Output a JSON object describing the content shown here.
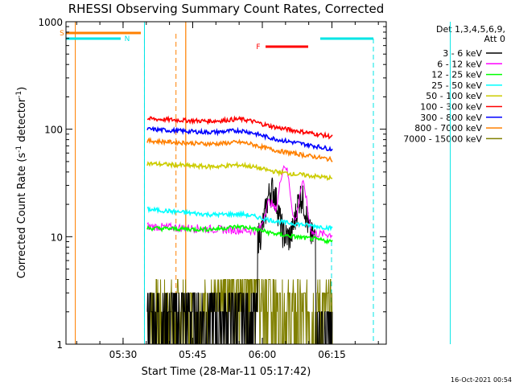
{
  "chart_data": {
    "type": "line",
    "title": "RHESSI Observing Summary Count Rates, Corrected",
    "xlabel": "Start Time (28-Mar-11 05:17:42)",
    "ylabel_base": "Corrected Count Rate (s",
    "ylabel_exp1": "-1",
    "ylabel_mid": " detector",
    "ylabel_exp2": "-1",
    "ylabel_end": ")",
    "yscale": "log",
    "ylim": [
      1,
      1000
    ],
    "xlim_minutes": [
      17.7,
      86.7
    ],
    "x_ticks": [
      {
        "t": 30,
        "label": "05:30"
      },
      {
        "t": 45,
        "label": "05:45"
      },
      {
        "t": 60,
        "label": "06:00"
      },
      {
        "t": 75,
        "label": "06:15"
      },
      {
        "t": 90,
        "label": "06:30"
      },
      {
        "t": 105,
        "label": "06:45"
      }
    ],
    "y_tick_labels": [
      {
        "v": 1,
        "label": "1"
      },
      {
        "v": 10,
        "label": "10"
      },
      {
        "v": 100,
        "label": "100"
      },
      {
        "v": 1000,
        "label": "1000"
      }
    ],
    "legend_header": [
      "Det 1,3,4,5,6,9,",
      "Att 0"
    ],
    "series": [
      {
        "name": "3 - 6 keV",
        "color": "#000000"
      },
      {
        "name": "6 - 12 keV",
        "color": "#ff00ff"
      },
      {
        "name": "12 - 25 keV",
        "color": "#00ff00"
      },
      {
        "name": "25 - 50 keV",
        "color": "#00ffff"
      },
      {
        "name": "50 - 100 keV",
        "color": "#cccc00"
      },
      {
        "name": "100 - 300 keV",
        "color": "#ff0000"
      },
      {
        "name": "300 - 800 keV",
        "color": "#0000ff"
      },
      {
        "name": "800 - 7000 keV",
        "color": "#ff8000"
      },
      {
        "name": "7000 - 15000 keV",
        "color": "#808000"
      }
    ],
    "series_levels": [
      {
        "name": "100 - 300 keV",
        "start": 125,
        "mid": 115,
        "end": 85
      },
      {
        "name": "300 - 800 keV",
        "start": 100,
        "mid": 90,
        "end": 65
      },
      {
        "name": "800 - 7000 keV",
        "start": 78,
        "mid": 70,
        "end": 52
      },
      {
        "name": "50 - 100 keV",
        "start": 48,
        "mid": 43,
        "end": 35
      },
      {
        "name": "25 - 50 keV",
        "start": 18,
        "mid": 15,
        "end": 12
      },
      {
        "name": "12 - 25 keV",
        "start": 12,
        "mid": 11.5,
        "end": 9
      }
    ],
    "flare_peaks": [
      {
        "name": "6 - 12 keV",
        "peaks": [
          {
            "t": 91.5,
            "v": 48
          },
          {
            "t": 95.5,
            "v": 35
          }
        ]
      },
      {
        "name": "3 - 6 keV",
        "peaks": [
          {
            "t": 87,
            "v": 18
          },
          {
            "t": 92,
            "v": 25
          },
          {
            "t": 96,
            "v": 20
          }
        ]
      }
    ],
    "markers": {
      "saa_label": "S",
      "night_label": "N",
      "flare_label": "F",
      "saa_interval": [
        17.7,
        43.5
      ],
      "night_intervals": [
        [
          17.7,
          34.6
        ],
        [
          100.5,
          86.7
        ]
      ],
      "flare_interval": [
        83.3,
        95.2
      ],
      "saa_lines": [
        19.7,
        43.5
      ],
      "night_lines": [
        34.6,
        100.5
      ],
      "data_start": 43.5,
      "data_end": 112.5,
      "dashed_lines": [
        34.6,
        41.4,
        100.5,
        112.2
      ]
    },
    "timestamp": "16-Oct-2021 00:54"
  }
}
